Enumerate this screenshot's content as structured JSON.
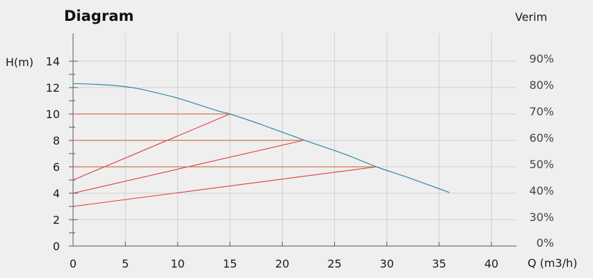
{
  "chart_data": {
    "type": "line",
    "title": "Diagram",
    "ylabel": "H(m)",
    "xlabel": "Q (m3/h)",
    "y2label": "Verim",
    "xlim": [
      0,
      40
    ],
    "ylim": [
      0,
      14
    ],
    "xticks": [
      "0",
      "5",
      "10",
      "15",
      "20",
      "25",
      "30",
      "35",
      "40"
    ],
    "yticks": [
      "0",
      "2",
      "4",
      "6",
      "8",
      "10",
      "12",
      "14"
    ],
    "y2ticks": [
      "0%",
      "30%",
      "40%",
      "50%",
      "60%",
      "70%",
      "80%",
      "90%"
    ],
    "grid": true,
    "pump_curve": {
      "x": [
        0,
        2,
        4,
        6,
        8,
        10,
        12,
        14,
        15,
        18,
        22,
        26,
        29,
        32,
        36
      ],
      "y": [
        12.3,
        12.25,
        12.15,
        11.95,
        11.6,
        11.2,
        10.7,
        10.2,
        10.0,
        9.2,
        8.05,
        6.95,
        6.0,
        5.2,
        4.05
      ]
    },
    "operating_points": [
      {
        "x": 15,
        "y": 10,
        "origin_y": 5
      },
      {
        "x": 22,
        "y": 8,
        "origin_y": 4
      },
      {
        "x": 29,
        "y": 6,
        "origin_y": 3
      }
    ],
    "colors": {
      "curve": "#2a8aa0",
      "horizontal": "#d0744a",
      "system": "#e03a3a"
    }
  }
}
